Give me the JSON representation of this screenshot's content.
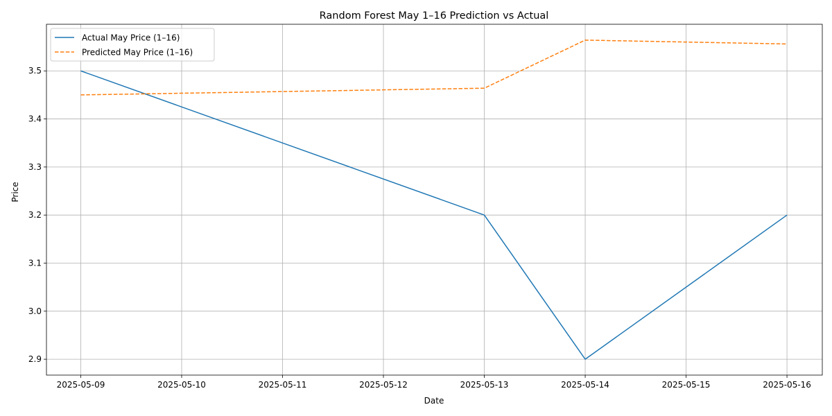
{
  "chart_data": {
    "type": "line",
    "title": "Random Forest May 1–16 Prediction vs Actual",
    "xlabel": "Date",
    "ylabel": "Price",
    "x": [
      "2025-05-09",
      "2025-05-13",
      "2025-05-14",
      "2025-05-16"
    ],
    "x_ticks": [
      "2025-05-09",
      "2025-05-10",
      "2025-05-11",
      "2025-05-12",
      "2025-05-13",
      "2025-05-14",
      "2025-05-15",
      "2025-05-16"
    ],
    "y_ticks": [
      "2.9",
      "3.0",
      "3.1",
      "3.2",
      "3.3",
      "3.4",
      "3.5"
    ],
    "xlim": [
      "2025-05-08.66",
      "2025-05-16.35"
    ],
    "ylim": [
      2.867,
      3.597
    ],
    "grid": true,
    "legend_position": "upper-left",
    "series": [
      {
        "name": "Actual May Price (1–16)",
        "color": "#1f77b4",
        "style": "solid",
        "values": [
          3.5,
          3.2,
          2.9,
          3.2
        ]
      },
      {
        "name": "Predicted May Price (1–16)",
        "color": "#ff7f0e",
        "style": "dashed",
        "values": [
          3.45,
          3.464,
          3.564,
          3.556
        ]
      }
    ]
  }
}
